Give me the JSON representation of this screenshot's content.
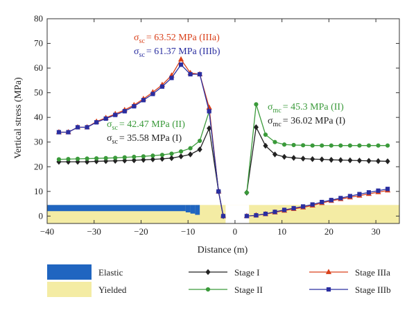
{
  "chart_data": {
    "type": "line",
    "xlabel": "Distance (m)",
    "ylabel": "Vertical stress (MPa)",
    "xlim": [
      -40,
      35
    ],
    "ylim": [
      -3,
      80
    ],
    "xticks": [
      -40,
      -30,
      -20,
      -10,
      0,
      10,
      20,
      30
    ],
    "yticks": [
      0,
      10,
      20,
      30,
      40,
      50,
      60,
      70,
      80
    ],
    "grid": false,
    "colors": {
      "elastic": "#2065c0",
      "yielded": "#f4eca4",
      "stage1": "#222222",
      "stage2": "#3a9a3a",
      "stage3a": "#d9401a",
      "stage3b": "#2a2ea0"
    },
    "legend": [
      {
        "key": "elastic",
        "label": "Elastic"
      },
      {
        "key": "yielded",
        "label": "Yielded"
      },
      {
        "key": "stage1",
        "label": "Stage I"
      },
      {
        "key": "stage2",
        "label": "Stage II"
      },
      {
        "key": "stage3a",
        "label": "Stage IIIa"
      },
      {
        "key": "stage3b",
        "label": "Stage IIIb"
      }
    ],
    "annotations": [
      {
        "sym": "σ",
        "sub": "sc",
        "text": "= 63.52 MPa (IIIa)",
        "color": "#d9401a"
      },
      {
        "sym": "σ",
        "sub": "sc",
        "text": "= 61.37 MPa (IIIb)",
        "color": "#2a2ea0"
      },
      {
        "sym": "σ",
        "sub": "sc",
        "text": "= 42.47 MPa (II)",
        "color": "#3a9a3a"
      },
      {
        "sym": "σ",
        "sub": "sc",
        "text": "= 35.58 MPa (I)",
        "color": "#222222"
      },
      {
        "sym": "σ",
        "sub": "mc",
        "text": "= 45.3 MPa (II)",
        "color": "#3a9a3a"
      },
      {
        "sym": "σ",
        "sub": "mc",
        "text": "= 36.02 MPa (I)",
        "color": "#222222"
      }
    ],
    "zones": {
      "elastic_steps": [
        [
          -40,
          2.0
        ],
        [
          -10.5,
          1.5
        ],
        [
          -9.5,
          1.0
        ],
        [
          -8.5,
          0.5
        ],
        [
          -7.5,
          0
        ]
      ],
      "band_top": 4.5,
      "opening": [
        -2,
        3
      ]
    },
    "series": [
      {
        "name": "Stage I",
        "key": "stage1",
        "marker": "diamond",
        "segments": [
          [
            [
              -37.5,
              22
            ],
            [
              -35.5,
              22
            ],
            [
              -33.5,
              22
            ],
            [
              -31.5,
              22
            ],
            [
              -29.5,
              22.2
            ],
            [
              -27.5,
              22.3
            ],
            [
              -25.5,
              22.4
            ],
            [
              -23.5,
              22.5
            ],
            [
              -21.5,
              22.6
            ],
            [
              -19.5,
              22.8
            ],
            [
              -17.5,
              23
            ],
            [
              -15.5,
              23.2
            ],
            [
              -13.5,
              23.5
            ],
            [
              -11.5,
              24.2
            ],
            [
              -9.5,
              25
            ],
            [
              -7.5,
              27
            ],
            [
              -5.5,
              35.58
            ],
            [
              -3.5,
              10
            ],
            [
              -2.5,
              0
            ]
          ],
          [
            [
              2.5,
              9.5
            ],
            [
              4.5,
              36.02
            ],
            [
              6.5,
              28.5
            ],
            [
              8.5,
              25
            ],
            [
              10.5,
              24
            ],
            [
              12.5,
              23.6
            ],
            [
              14.5,
              23.3
            ],
            [
              16.5,
              23.1
            ],
            [
              18.5,
              23
            ],
            [
              20.5,
              22.8
            ],
            [
              22.5,
              22.7
            ],
            [
              24.5,
              22.6
            ],
            [
              26.5,
              22.5
            ],
            [
              28.5,
              22.4
            ],
            [
              30.5,
              22.3
            ],
            [
              32.5,
              22.2
            ]
          ]
        ]
      },
      {
        "name": "Stage II",
        "key": "stage2",
        "marker": "circle",
        "segments": [
          [
            [
              -37.5,
              23
            ],
            [
              -35.5,
              23.1
            ],
            [
              -33.5,
              23.2
            ],
            [
              -31.5,
              23.3
            ],
            [
              -29.5,
              23.4
            ],
            [
              -27.5,
              23.5
            ],
            [
              -25.5,
              23.6
            ],
            [
              -23.5,
              23.8
            ],
            [
              -21.5,
              24
            ],
            [
              -19.5,
              24.2
            ],
            [
              -17.5,
              24.5
            ],
            [
              -15.5,
              24.8
            ],
            [
              -13.5,
              25.3
            ],
            [
              -11.5,
              26.2
            ],
            [
              -9.5,
              27.5
            ],
            [
              -7.5,
              30.5
            ],
            [
              -5.5,
              42.47
            ],
            [
              -3.5,
              10
            ],
            [
              -2.5,
              0
            ]
          ],
          [
            [
              2.5,
              9.5
            ],
            [
              4.5,
              45.3
            ],
            [
              6.5,
              33
            ],
            [
              8.5,
              30
            ],
            [
              10.5,
              29
            ],
            [
              12.5,
              28.8
            ],
            [
              14.5,
              28.7
            ],
            [
              16.5,
              28.6
            ],
            [
              18.5,
              28.6
            ],
            [
              20.5,
              28.6
            ],
            [
              22.5,
              28.6
            ],
            [
              24.5,
              28.6
            ],
            [
              26.5,
              28.6
            ],
            [
              28.5,
              28.6
            ],
            [
              30.5,
              28.6
            ],
            [
              32.5,
              28.6
            ]
          ]
        ]
      },
      {
        "name": "Stage IIIa",
        "key": "stage3a",
        "marker": "triangle",
        "segments": [
          [
            [
              -37.5,
              34
            ],
            [
              -35.5,
              34
            ],
            [
              -33.5,
              36
            ],
            [
              -31.5,
              36
            ],
            [
              -29.5,
              38.3
            ],
            [
              -27.5,
              39.8
            ],
            [
              -25.5,
              41.4
            ],
            [
              -23.5,
              43
            ],
            [
              -21.5,
              45
            ],
            [
              -19.5,
              47.5
            ],
            [
              -17.5,
              50.2
            ],
            [
              -15.5,
              53.2
            ],
            [
              -13.5,
              57
            ],
            [
              -11.5,
              63.52
            ],
            [
              -9.5,
              58
            ],
            [
              -7.5,
              57.5
            ],
            [
              -5.5,
              44
            ],
            [
              -3.5,
              10
            ],
            [
              -2.5,
              0
            ]
          ],
          [
            [
              2.5,
              0
            ],
            [
              4.5,
              0.3
            ],
            [
              6.5,
              0.8
            ],
            [
              8.5,
              1.5
            ],
            [
              10.5,
              2.2
            ],
            [
              12.5,
              2.9
            ],
            [
              14.5,
              3.5
            ],
            [
              16.5,
              4.3
            ],
            [
              18.5,
              5.3
            ],
            [
              20.5,
              6.2
            ],
            [
              22.5,
              6.9
            ],
            [
              24.5,
              7.6
            ],
            [
              26.5,
              8.3
            ],
            [
              28.5,
              9
            ],
            [
              30.5,
              9.7
            ],
            [
              32.5,
              10.4
            ]
          ]
        ]
      },
      {
        "name": "Stage IIIb",
        "key": "stage3b",
        "marker": "square",
        "segments": [
          [
            [
              -37.5,
              34
            ],
            [
              -35.5,
              34
            ],
            [
              -33.5,
              36
            ],
            [
              -31.5,
              36
            ],
            [
              -29.5,
              38
            ],
            [
              -27.5,
              39.5
            ],
            [
              -25.5,
              41
            ],
            [
              -23.5,
              42.5
            ],
            [
              -21.5,
              44.5
            ],
            [
              -19.5,
              47
            ],
            [
              -17.5,
              49.5
            ],
            [
              -15.5,
              52.5
            ],
            [
              -13.5,
              56
            ],
            [
              -11.5,
              61.37
            ],
            [
              -9.5,
              57.5
            ],
            [
              -7.5,
              57.5
            ],
            [
              -5.5,
              42.5
            ],
            [
              -3.5,
              10
            ],
            [
              -2.5,
              0
            ]
          ],
          [
            [
              2.5,
              0
            ],
            [
              4.5,
              0.3
            ],
            [
              6.5,
              0.9
            ],
            [
              8.5,
              1.7
            ],
            [
              10.5,
              2.5
            ],
            [
              12.5,
              3.2
            ],
            [
              14.5,
              3.9
            ],
            [
              16.5,
              4.7
            ],
            [
              18.5,
              5.7
            ],
            [
              20.5,
              6.5
            ],
            [
              22.5,
              7.3
            ],
            [
              24.5,
              8.1
            ],
            [
              26.5,
              8.9
            ],
            [
              28.5,
              9.6
            ],
            [
              30.5,
              10.3
            ],
            [
              32.5,
              11
            ]
          ]
        ]
      }
    ]
  }
}
